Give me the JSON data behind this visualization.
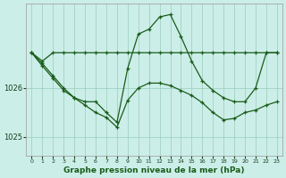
{
  "title": "Graphe pression niveau de la mer (hPa)",
  "bg_color": "#cceee8",
  "grid_color": "#99ccbb",
  "line_color": "#1a5c1a",
  "x": [
    0,
    1,
    2,
    3,
    4,
    5,
    6,
    7,
    8,
    9,
    10,
    11,
    12,
    13,
    14,
    15,
    16,
    17,
    18,
    19,
    20,
    21,
    22,
    23
  ],
  "ylim": [
    1024.62,
    1027.72
  ],
  "ytick_vals": [
    1025,
    1026
  ],
  "series1": [
    1026.72,
    1026.55,
    1026.72,
    1026.72,
    1026.72,
    1026.72,
    1026.72,
    1026.72,
    1026.72,
    1026.72,
    1026.72,
    1026.72,
    1026.72,
    1026.72,
    1026.72,
    1026.72,
    1026.72,
    1026.72,
    1026.72,
    1026.72,
    1026.72,
    1026.72,
    1026.72,
    1026.72
  ],
  "series2": [
    1026.72,
    1026.45,
    1026.2,
    1025.95,
    1025.8,
    1025.72,
    1025.72,
    1025.5,
    1025.3,
    1026.4,
    1027.1,
    1027.2,
    1027.45,
    1027.5,
    1027.05,
    1026.55,
    1026.15,
    1025.95,
    1025.8,
    1025.72,
    1025.72,
    1026.0,
    1026.72,
    1026.72
  ],
  "series3": [
    1026.72,
    1026.5,
    1026.25,
    1026.0,
    1025.8,
    1025.65,
    1025.5,
    1025.4,
    1025.2,
    1025.75,
    1026.0,
    1026.1,
    1026.1,
    1026.05,
    1025.95,
    1025.85,
    1025.7,
    1025.5,
    1025.35,
    1025.38,
    1025.5,
    1025.55,
    1025.65,
    1025.72
  ],
  "tick_color": "#1a3a1a",
  "xlabel_bold": true,
  "xlabel_size": 6.5,
  "xtick_size": 4.5,
  "ytick_size": 6.0,
  "marker": "+",
  "markersize": 3.5,
  "linewidth": 0.9
}
